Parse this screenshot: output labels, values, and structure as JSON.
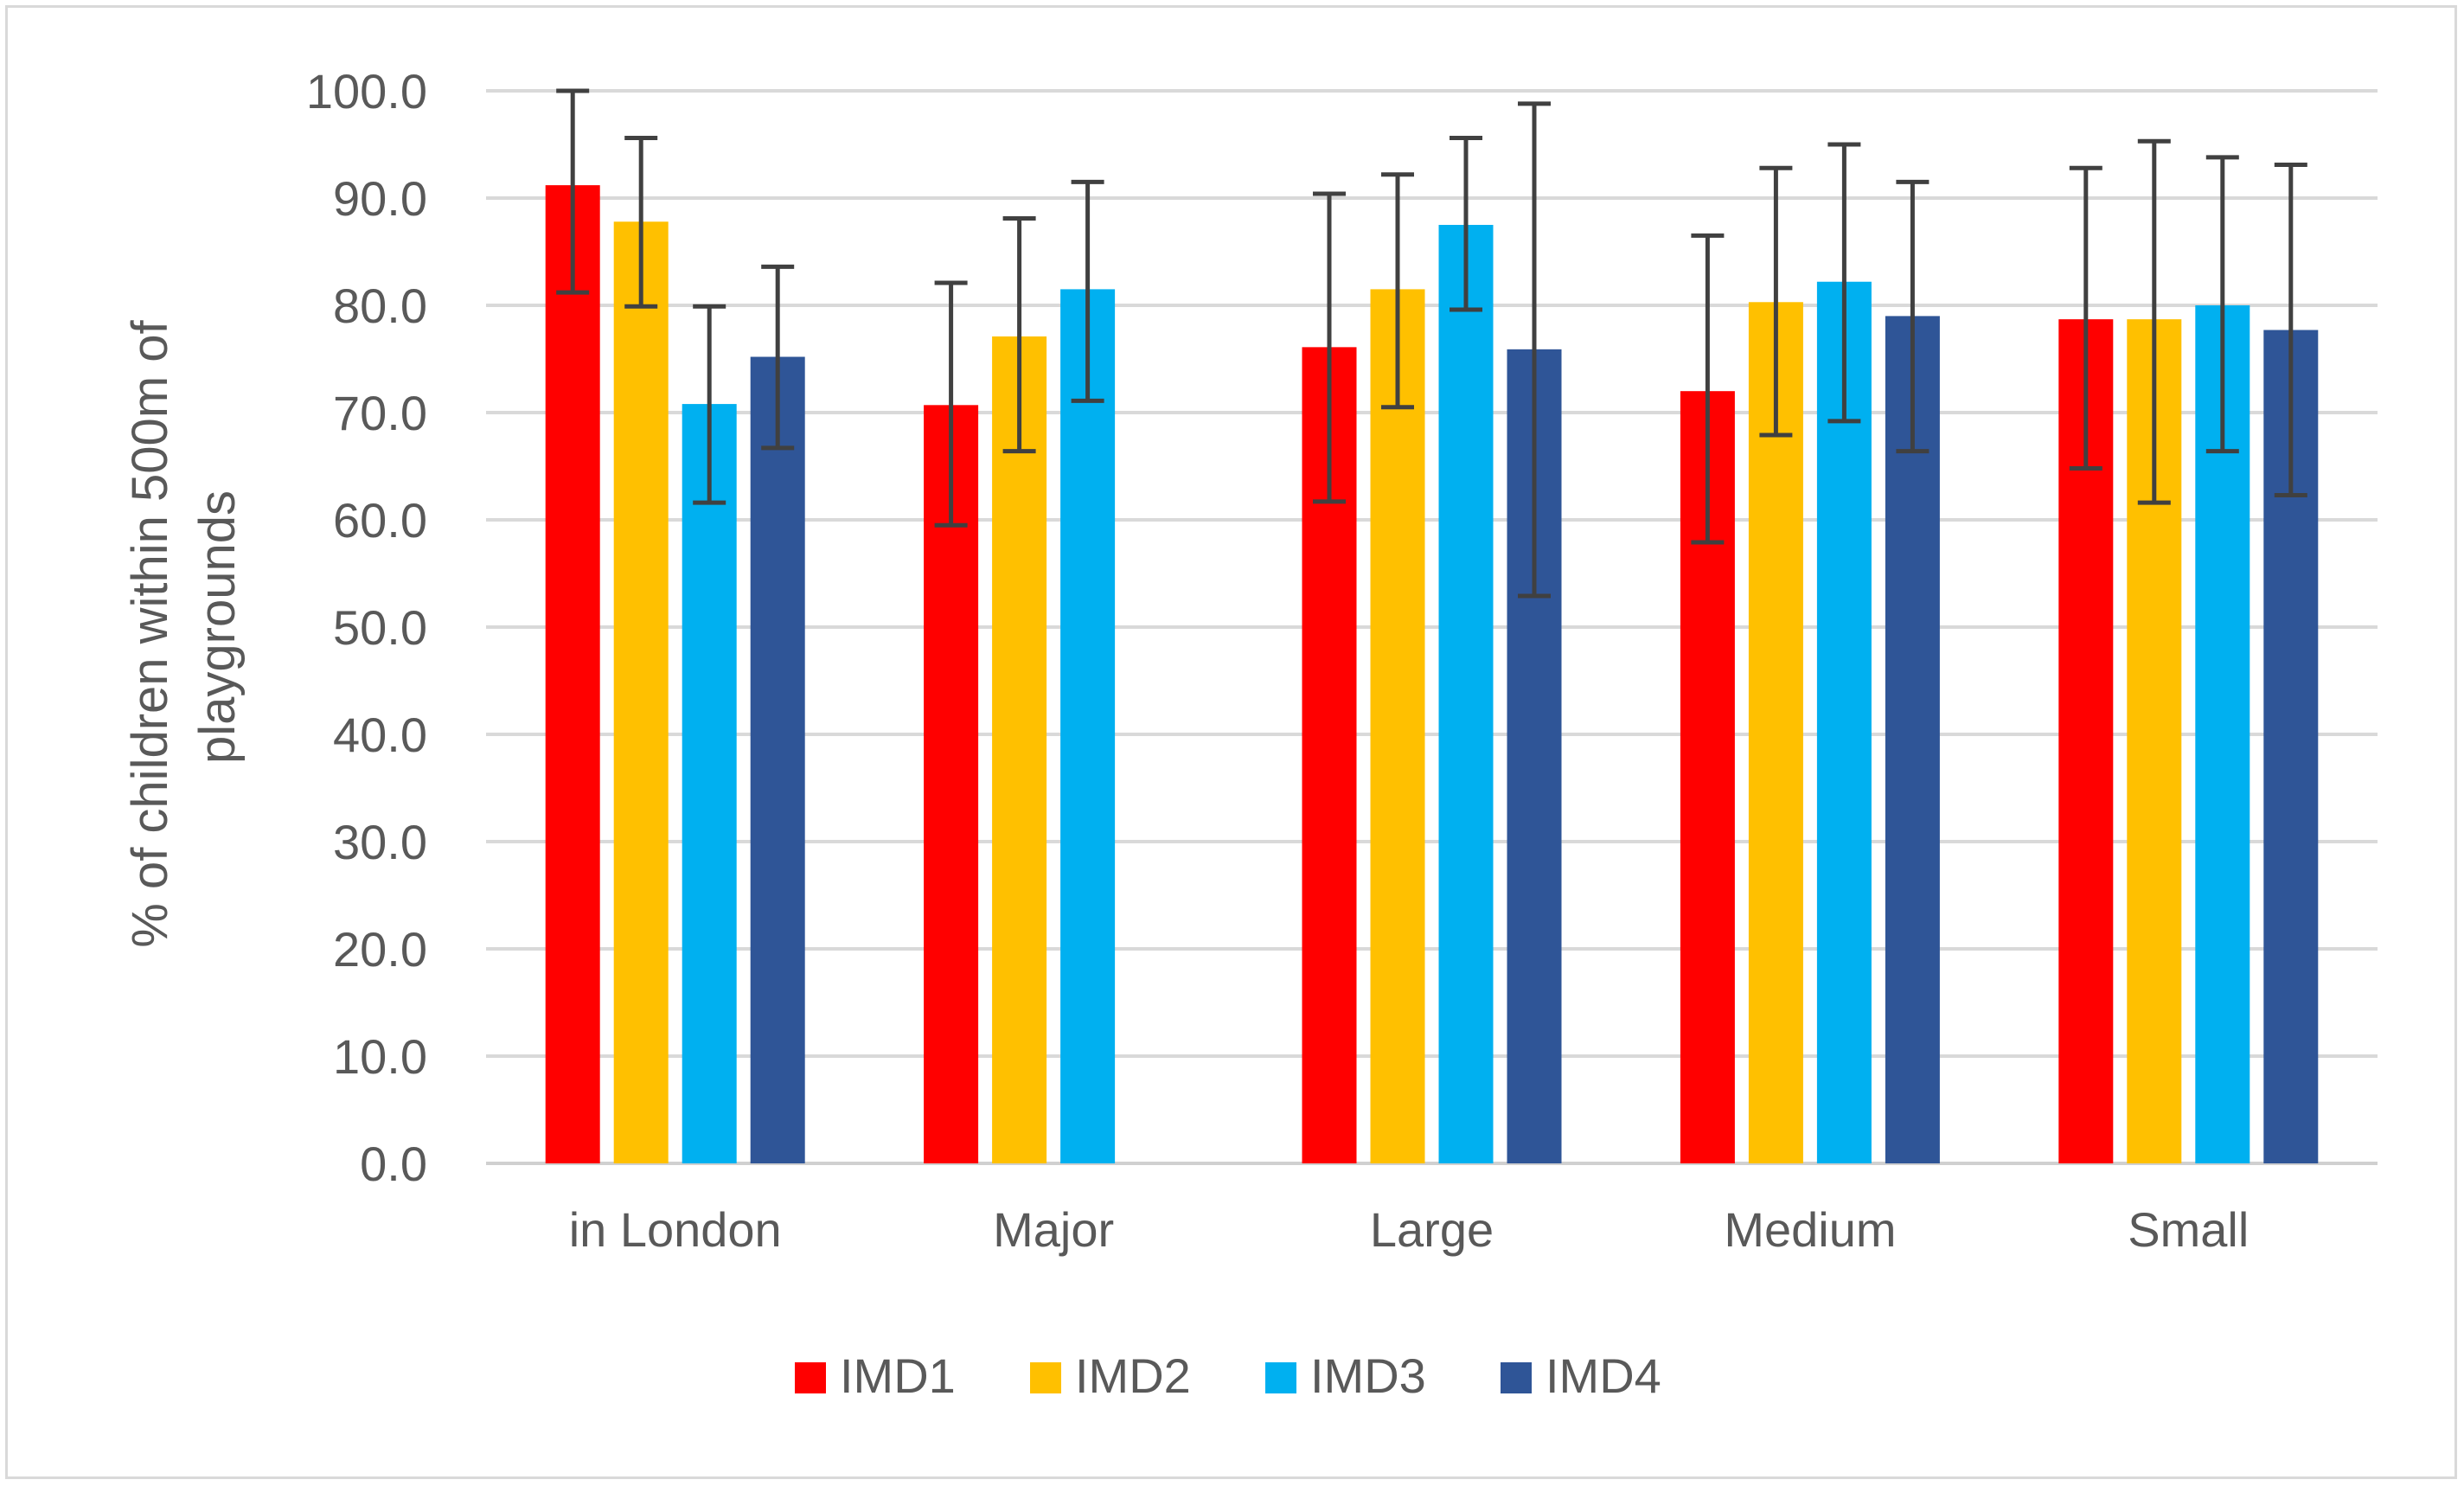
{
  "chart_data": {
    "type": "bar",
    "title": "",
    "xlabel": "",
    "ylabel_lines": [
      "% of children within 500m of",
      "playgrounds"
    ],
    "categories": [
      "in London",
      "Major",
      "Large",
      "Medium",
      "Small"
    ],
    "ylim": [
      0,
      100
    ],
    "yticks": [
      "0.0",
      "10.0",
      "20.0",
      "30.0",
      "40.0",
      "50.0",
      "60.0",
      "70.0",
      "80.0",
      "90.0",
      "100.0"
    ],
    "grid": true,
    "legend_position": "bottom-center",
    "series": [
      {
        "name": "IMD1",
        "color": "#ff0000",
        "values": [
          91.2,
          70.7,
          76.1,
          72.0,
          78.7
        ],
        "err_low": [
          81.2,
          59.5,
          61.7,
          57.9,
          64.8
        ],
        "err_high": [
          100.0,
          82.1,
          90.4,
          86.5,
          92.8
        ]
      },
      {
        "name": "IMD2",
        "color": "#ffc000",
        "values": [
          87.8,
          77.1,
          81.5,
          80.3,
          78.7
        ],
        "err_low": [
          79.9,
          66.4,
          70.5,
          67.9,
          61.6
        ],
        "err_high": [
          95.6,
          88.1,
          92.2,
          92.8,
          95.3
        ]
      },
      {
        "name": "IMD3",
        "color": "#00b0f0",
        "values": [
          70.8,
          81.5,
          87.5,
          82.2,
          80.0
        ],
        "err_low": [
          61.6,
          71.1,
          79.6,
          69.2,
          66.4
        ],
        "err_high": [
          79.9,
          91.5,
          95.6,
          95.0,
          93.8
        ]
      },
      {
        "name": "IMD4",
        "color": "#2f5597",
        "values": [
          75.2,
          null,
          75.9,
          79.0,
          77.7
        ],
        "err_low": [
          66.7,
          null,
          52.9,
          66.4,
          62.3
        ],
        "err_high": [
          83.6,
          null,
          98.8,
          91.5,
          93.1
        ]
      }
    ]
  }
}
